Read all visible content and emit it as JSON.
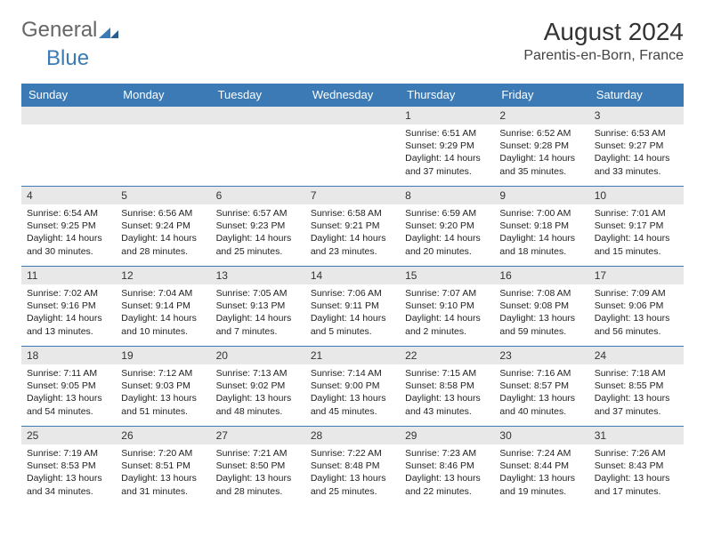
{
  "logo": {
    "text1": "General",
    "text2": "Blue"
  },
  "title": "August 2024",
  "location": "Parentis-en-Born, France",
  "colors": {
    "header_bg": "#3b7ab5",
    "header_text": "#ffffff",
    "daynum_bg": "#e8e8e8",
    "border": "#3b7ab5",
    "text": "#222222",
    "background": "#ffffff"
  },
  "weekdays": [
    "Sunday",
    "Monday",
    "Tuesday",
    "Wednesday",
    "Thursday",
    "Friday",
    "Saturday"
  ],
  "weeks": [
    [
      null,
      null,
      null,
      null,
      {
        "d": "1",
        "sr": "6:51 AM",
        "ss": "9:29 PM",
        "dl": "14 hours and 37 minutes."
      },
      {
        "d": "2",
        "sr": "6:52 AM",
        "ss": "9:28 PM",
        "dl": "14 hours and 35 minutes."
      },
      {
        "d": "3",
        "sr": "6:53 AM",
        "ss": "9:27 PM",
        "dl": "14 hours and 33 minutes."
      }
    ],
    [
      {
        "d": "4",
        "sr": "6:54 AM",
        "ss": "9:25 PM",
        "dl": "14 hours and 30 minutes."
      },
      {
        "d": "5",
        "sr": "6:56 AM",
        "ss": "9:24 PM",
        "dl": "14 hours and 28 minutes."
      },
      {
        "d": "6",
        "sr": "6:57 AM",
        "ss": "9:23 PM",
        "dl": "14 hours and 25 minutes."
      },
      {
        "d": "7",
        "sr": "6:58 AM",
        "ss": "9:21 PM",
        "dl": "14 hours and 23 minutes."
      },
      {
        "d": "8",
        "sr": "6:59 AM",
        "ss": "9:20 PM",
        "dl": "14 hours and 20 minutes."
      },
      {
        "d": "9",
        "sr": "7:00 AM",
        "ss": "9:18 PM",
        "dl": "14 hours and 18 minutes."
      },
      {
        "d": "10",
        "sr": "7:01 AM",
        "ss": "9:17 PM",
        "dl": "14 hours and 15 minutes."
      }
    ],
    [
      {
        "d": "11",
        "sr": "7:02 AM",
        "ss": "9:16 PM",
        "dl": "14 hours and 13 minutes."
      },
      {
        "d": "12",
        "sr": "7:04 AM",
        "ss": "9:14 PM",
        "dl": "14 hours and 10 minutes."
      },
      {
        "d": "13",
        "sr": "7:05 AM",
        "ss": "9:13 PM",
        "dl": "14 hours and 7 minutes."
      },
      {
        "d": "14",
        "sr": "7:06 AM",
        "ss": "9:11 PM",
        "dl": "14 hours and 5 minutes."
      },
      {
        "d": "15",
        "sr": "7:07 AM",
        "ss": "9:10 PM",
        "dl": "14 hours and 2 minutes."
      },
      {
        "d": "16",
        "sr": "7:08 AM",
        "ss": "9:08 PM",
        "dl": "13 hours and 59 minutes."
      },
      {
        "d": "17",
        "sr": "7:09 AM",
        "ss": "9:06 PM",
        "dl": "13 hours and 56 minutes."
      }
    ],
    [
      {
        "d": "18",
        "sr": "7:11 AM",
        "ss": "9:05 PM",
        "dl": "13 hours and 54 minutes."
      },
      {
        "d": "19",
        "sr": "7:12 AM",
        "ss": "9:03 PM",
        "dl": "13 hours and 51 minutes."
      },
      {
        "d": "20",
        "sr": "7:13 AM",
        "ss": "9:02 PM",
        "dl": "13 hours and 48 minutes."
      },
      {
        "d": "21",
        "sr": "7:14 AM",
        "ss": "9:00 PM",
        "dl": "13 hours and 45 minutes."
      },
      {
        "d": "22",
        "sr": "7:15 AM",
        "ss": "8:58 PM",
        "dl": "13 hours and 43 minutes."
      },
      {
        "d": "23",
        "sr": "7:16 AM",
        "ss": "8:57 PM",
        "dl": "13 hours and 40 minutes."
      },
      {
        "d": "24",
        "sr": "7:18 AM",
        "ss": "8:55 PM",
        "dl": "13 hours and 37 minutes."
      }
    ],
    [
      {
        "d": "25",
        "sr": "7:19 AM",
        "ss": "8:53 PM",
        "dl": "13 hours and 34 minutes."
      },
      {
        "d": "26",
        "sr": "7:20 AM",
        "ss": "8:51 PM",
        "dl": "13 hours and 31 minutes."
      },
      {
        "d": "27",
        "sr": "7:21 AM",
        "ss": "8:50 PM",
        "dl": "13 hours and 28 minutes."
      },
      {
        "d": "28",
        "sr": "7:22 AM",
        "ss": "8:48 PM",
        "dl": "13 hours and 25 minutes."
      },
      {
        "d": "29",
        "sr": "7:23 AM",
        "ss": "8:46 PM",
        "dl": "13 hours and 22 minutes."
      },
      {
        "d": "30",
        "sr": "7:24 AM",
        "ss": "8:44 PM",
        "dl": "13 hours and 19 minutes."
      },
      {
        "d": "31",
        "sr": "7:26 AM",
        "ss": "8:43 PM",
        "dl": "13 hours and 17 minutes."
      }
    ]
  ],
  "labels": {
    "sunrise": "Sunrise:",
    "sunset": "Sunset:",
    "daylight": "Daylight:"
  }
}
